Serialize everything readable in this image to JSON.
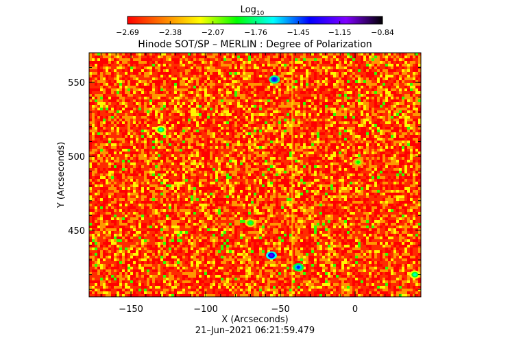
{
  "chart_data": {
    "type": "heatmap",
    "title": "Hinode SOT/SP – MERLIN : Degree of Polarization",
    "xlabel": "X (Arcseconds)",
    "ylabel": "Y (Arcseconds)",
    "xlim": [
      -178,
      44
    ],
    "ylim": [
      405,
      570
    ],
    "xticks": [
      -150,
      -100,
      -50,
      0
    ],
    "yticks": [
      450,
      500,
      550
    ],
    "xtick_labels": [
      "−150",
      "−100",
      "−50",
      "0"
    ],
    "ytick_labels": [
      "450",
      "500",
      "550"
    ],
    "timestamp": "21–Jun–2021 06:21:59.479",
    "colorbar": {
      "label_prefix": "Log",
      "label_sub": "10",
      "vmin": -2.69,
      "vmax": -0.84,
      "ticks": [
        -2.69,
        -2.38,
        -2.07,
        -1.76,
        -1.45,
        -1.15,
        -0.84
      ],
      "tick_labels": [
        "−2.69",
        "−2.38",
        "−2.07",
        "−1.76",
        "−1.45",
        "−1.15",
        "−0.84"
      ],
      "colormap": [
        "#ff0000",
        "#ff8000",
        "#ffff00",
        "#00ff00",
        "#00ffff",
        "#0000ff",
        "#8000ff",
        "#000000"
      ]
    },
    "background_level": -2.6,
    "features": [
      {
        "x": -56,
        "y": 433,
        "value": -1.2
      },
      {
        "x": -54,
        "y": 552,
        "value": -1.3
      },
      {
        "x": -38,
        "y": 425,
        "value": -1.4
      },
      {
        "x": -130,
        "y": 518,
        "value": -1.7
      },
      {
        "x": -70,
        "y": 455,
        "value": -1.8
      },
      {
        "x": 2,
        "y": 496,
        "value": -1.9
      },
      {
        "x": 40,
        "y": 420,
        "value": -1.7
      }
    ],
    "artifact_column_x": -42
  }
}
